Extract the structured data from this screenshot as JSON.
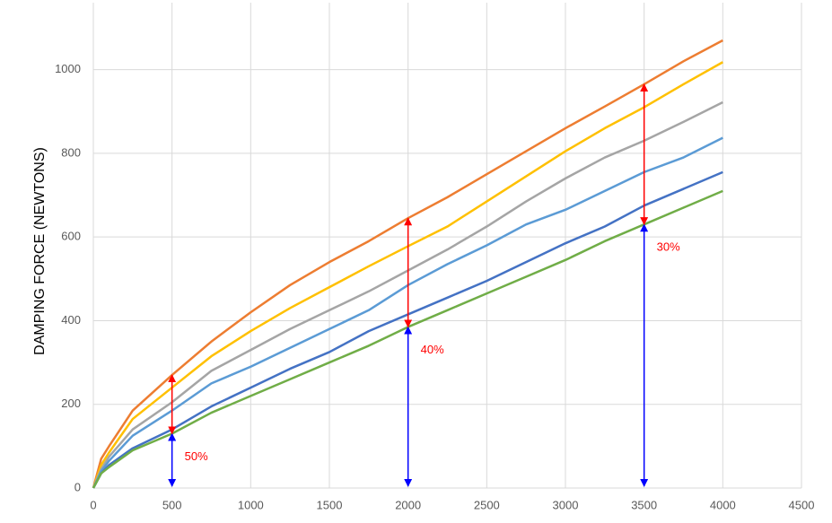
{
  "chart_data": {
    "type": "line",
    "y_label": "DAMPING FORCE (NEWTONS)",
    "x": [
      0,
      50,
      100,
      250,
      500,
      750,
      1000,
      1250,
      1500,
      1750,
      2000,
      2250,
      2500,
      2750,
      3000,
      3250,
      3500,
      3750,
      4000
    ],
    "series": [
      {
        "color": "#ed7d31",
        "values": [
          0,
          70,
          100,
          185,
          270,
          350,
          420,
          485,
          540,
          590,
          645,
          695,
          750,
          805,
          860,
          912,
          965,
          1020,
          1070
        ]
      },
      {
        "color": "#ffc000",
        "values": [
          0,
          55,
          85,
          165,
          240,
          315,
          375,
          430,
          480,
          530,
          578,
          625,
          685,
          745,
          805,
          860,
          910,
          965,
          1018
        ]
      },
      {
        "color": "#a5a5a5",
        "values": [
          0,
          45,
          75,
          140,
          205,
          280,
          330,
          380,
          425,
          470,
          520,
          570,
          625,
          685,
          740,
          790,
          830,
          875,
          922
        ]
      },
      {
        "color": "#5b9bd5",
        "values": [
          0,
          40,
          65,
          125,
          185,
          250,
          290,
          335,
          380,
          425,
          485,
          535,
          580,
          630,
          665,
          710,
          755,
          790,
          837
        ]
      },
      {
        "color": "#4472c4",
        "values": [
          0,
          35,
          55,
          95,
          140,
          195,
          240,
          285,
          325,
          375,
          415,
          455,
          495,
          540,
          585,
          625,
          675,
          715,
          755
        ]
      },
      {
        "color": "#70ad47",
        "values": [
          0,
          35,
          50,
          90,
          130,
          180,
          220,
          260,
          300,
          340,
          385,
          425,
          465,
          505,
          545,
          590,
          630,
          670,
          710
        ]
      }
    ],
    "annotations": [
      {
        "text": "50%",
        "x": 500,
        "low": 130,
        "high": 270
      },
      {
        "text": "40%",
        "x": 2000,
        "low": 385,
        "high": 645
      },
      {
        "text": "30%",
        "x": 3500,
        "low": 630,
        "high": 965
      }
    ],
    "xlim": [
      0,
      4500
    ],
    "xticks": [
      0,
      500,
      1000,
      1500,
      2000,
      2500,
      3000,
      3500,
      4000,
      4500
    ],
    "ylim": [
      0,
      1160
    ],
    "yticks": [
      0,
      200,
      400,
      600,
      800,
      1000
    ],
    "grid": true
  }
}
